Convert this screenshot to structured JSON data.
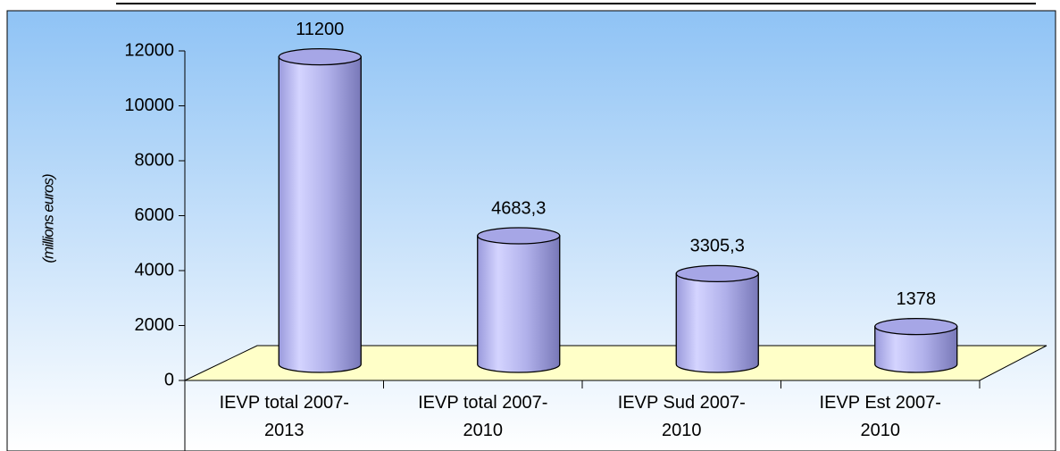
{
  "chart_data": {
    "type": "bar3d",
    "y_label": "(millions euros)",
    "categories": [
      "IEVP total 2007-2013",
      "IEVP total 2007-2010",
      "IEVP Sud 2007-2010",
      "IEVP Est 2007-2010"
    ],
    "values": [
      11200,
      4683.3,
      3305.3,
      1378
    ],
    "value_labels": [
      "11200",
      "4683,3",
      "3305,3",
      "1378"
    ],
    "color": "#b4b4f0",
    "ylim": [
      0,
      12000
    ],
    "yticks": [
      0,
      2000,
      4000,
      6000,
      8000,
      10000,
      12000
    ]
  }
}
